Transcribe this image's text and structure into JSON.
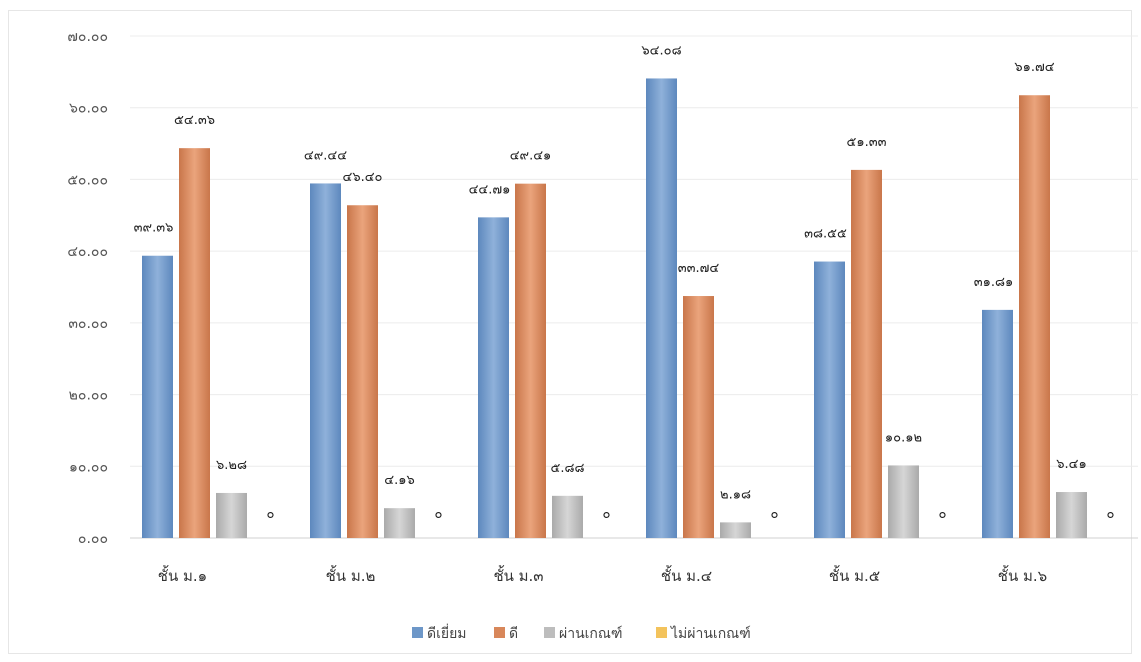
{
  "chart_data": {
    "type": "bar",
    "title": "",
    "xlabel": "",
    "ylabel": "",
    "ylim": [
      0,
      70
    ],
    "y_ticks": [
      0,
      10,
      20,
      30,
      40,
      50,
      60,
      70
    ],
    "y_tick_labels": [
      "๐.๐๐",
      "๑๐.๐๐",
      "๒๐.๐๐",
      "๓๐.๐๐",
      "๔๐.๐๐",
      "๕๐.๐๐",
      "๖๐.๐๐",
      "๗๐.๐๐"
    ],
    "grid": true,
    "legend_position": "bottom",
    "categories": [
      "ชั้น ม.๑",
      "ชั้น ม.๒",
      "ชั้น ม.๓",
      "ชั้น ม.๔",
      "ชั้น ม.๕",
      "ชั้น ม.๖"
    ],
    "series": [
      {
        "name": "ดีเยี่ยม",
        "color": "#6d97c8",
        "values": [
          39.36,
          49.44,
          44.71,
          64.08,
          38.55,
          31.81
        ],
        "labels": [
          "๓๙.๓๖",
          "๔๙.๔๔",
          "๔๔.๗๑",
          "๖๔.๐๘",
          "๓๘.๕๕",
          "๓๑.๘๑"
        ]
      },
      {
        "name": "ดี",
        "color": "#d8875a",
        "values": [
          54.36,
          46.4,
          49.41,
          33.74,
          51.33,
          61.74
        ],
        "labels": [
          "๕๔.๓๖",
          "๔๖.๔๐",
          "๔๙.๔๑",
          "๓๓.๗๔",
          "๕๑.๓๓",
          "๖๑.๗๔"
        ]
      },
      {
        "name": "ผ่านเกณฑ์",
        "color": "#bdbdbd",
        "values": [
          6.28,
          4.16,
          5.88,
          2.18,
          10.12,
          6.41
        ],
        "labels": [
          "๖.๒๘",
          "๔.๑๖",
          "๕.๘๘",
          "๒.๑๘",
          "๑๐.๑๒",
          "๖.๔๑"
        ]
      },
      {
        "name": "ไม่ผ่านเกณฑ์",
        "color": "#f3c35c",
        "values": [
          0,
          0,
          0,
          0,
          0,
          0
        ],
        "labels": [
          "๐",
          "๐",
          "๐",
          "๐",
          "๐",
          "๐"
        ]
      }
    ]
  }
}
